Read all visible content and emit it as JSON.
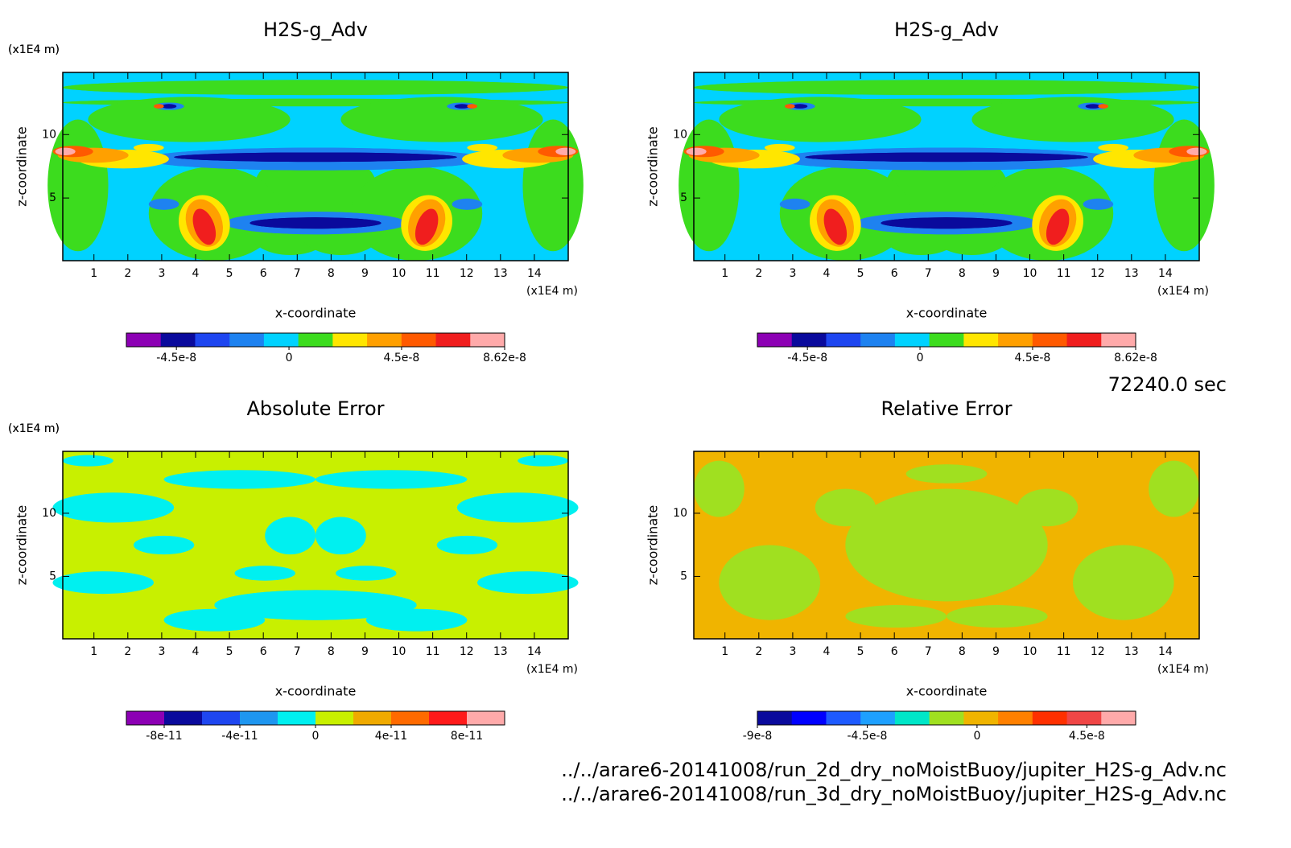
{
  "chart_data": [
    {
      "type": "contour",
      "title": "H2S-g_Adv",
      "xlabel": "x-coordinate",
      "ylabel": "z-coordinate",
      "xunit": "(x1E4 m)",
      "yunit": "(x1E4 m)",
      "xlim": [
        0.08,
        15
      ],
      "ylim": [
        0.06,
        14.9
      ],
      "xticks": [
        1,
        2,
        3,
        4,
        5,
        6,
        7,
        8,
        9,
        10,
        11,
        12,
        13,
        14
      ],
      "yticks": [
        5,
        10
      ],
      "colorbar": {
        "clim": [
          -6.5e-08,
          8.62e-08
        ],
        "ticks": [
          -4.5e-08,
          0,
          4.5e-08,
          8.62e-08
        ],
        "colors": [
          "#8c00b4",
          "#0a0a9c",
          "#1e46f0",
          "#1e82f0",
          "#00d2ff",
          "#3cdc1e",
          "#ffe600",
          "#ffa000",
          "#ff5a00",
          "#f01e1e",
          "#ffaaaa"
        ]
      }
    },
    {
      "type": "contour",
      "title": "H2S-g_Adv",
      "xlabel": "x-coordinate",
      "ylabel": "z-coordinate",
      "xunit": "(x1E4 m)",
      "yunit": "(x1E4 m)",
      "xlim": [
        0.08,
        15
      ],
      "ylim": [
        0.06,
        14.9
      ],
      "xticks": [
        1,
        2,
        3,
        4,
        5,
        6,
        7,
        8,
        9,
        10,
        11,
        12,
        13,
        14
      ],
      "yticks": [
        5,
        10
      ],
      "colorbar": {
        "clim": [
          -6.5e-08,
          8.62e-08
        ],
        "ticks": [
          -4.5e-08,
          0,
          4.5e-08,
          8.62e-08
        ],
        "colors": [
          "#8c00b4",
          "#0a0a9c",
          "#1e46f0",
          "#1e82f0",
          "#00d2ff",
          "#3cdc1e",
          "#ffe600",
          "#ffa000",
          "#ff5a00",
          "#f01e1e",
          "#ffaaaa"
        ]
      }
    },
    {
      "type": "contour",
      "title": "Absolute Error",
      "xlabel": "x-coordinate",
      "ylabel": "z-coordinate",
      "xunit": "(x1E4 m)",
      "yunit": "(x1E4 m)",
      "xlim": [
        0.08,
        15
      ],
      "ylim": [
        0.06,
        14.9
      ],
      "xticks": [
        1,
        2,
        3,
        4,
        5,
        6,
        7,
        8,
        9,
        10,
        11,
        12,
        13,
        14
      ],
      "yticks": [
        5,
        10
      ],
      "colorbar": {
        "clim": [
          -1e-10,
          1e-10
        ],
        "ticks": [
          -8e-11,
          -4e-11,
          0,
          4e-11,
          8e-11
        ],
        "colors": [
          "#8c00b4",
          "#0a0a9c",
          "#1e46f0",
          "#1e96f0",
          "#00f0f0",
          "#c8f000",
          "#f0aa00",
          "#ff6a00",
          "#ff1a1a",
          "#ffaaaa"
        ]
      }
    },
    {
      "type": "contour",
      "title": "Relative Error",
      "xlabel": "x-coordinate",
      "ylabel": "z-coordinate",
      "xunit": "(x1E4 m)",
      "yunit": "(x1E4 m)",
      "xlim": [
        0.08,
        15
      ],
      "ylim": [
        0.06,
        14.9
      ],
      "xticks": [
        1,
        2,
        3,
        4,
        5,
        6,
        7,
        8,
        9,
        10,
        11,
        12,
        13,
        14
      ],
      "yticks": [
        5,
        10
      ],
      "colorbar": {
        "clim": [
          -9e-08,
          6.5e-08
        ],
        "ticks": [
          -9e-08,
          -4.5e-08,
          0,
          4.5e-08
        ],
        "colors": [
          "#0a0a9c",
          "#0000ff",
          "#1e5aff",
          "#1ea0ff",
          "#00e6c8",
          "#a0e020",
          "#f0b400",
          "#ff8000",
          "#ff3000",
          "#f04646",
          "#ffaaaa"
        ]
      }
    }
  ],
  "annotations": {
    "time": "72240.0 sec",
    "files": [
      "../../arare6-20141008/run_2d_dry_noMoistBuoy/jupiter_H2S-g_Adv.nc",
      "../../arare6-20141008/run_3d_dry_noMoistBuoy/jupiter_H2S-g_Adv.nc"
    ]
  }
}
